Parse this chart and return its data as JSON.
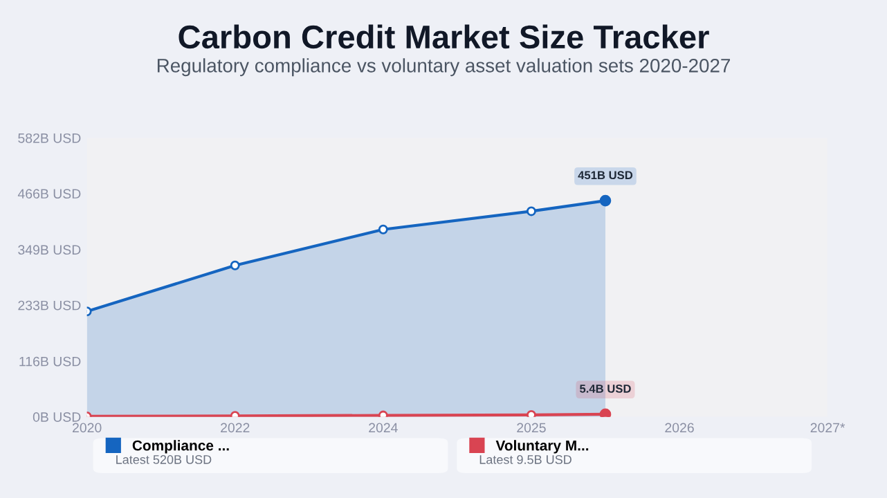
{
  "chart_data": {
    "type": "area",
    "title": "Carbon Credit Market Size Tracker",
    "subtitle": "Regulatory compliance vs voluntary asset valuation sets 2020-2027",
    "categories": [
      "2020",
      null,
      "2022",
      null,
      "2024",
      null,
      "2025",
      null,
      "2026",
      null,
      "2027*"
    ],
    "ylim": [
      0,
      582
    ],
    "yticks": [
      {
        "value": 0,
        "label": "0B USD"
      },
      {
        "value": 116,
        "label": "116B USD"
      },
      {
        "value": 233,
        "label": "233B USD"
      },
      {
        "value": 349,
        "label": "349B USD"
      },
      {
        "value": 466,
        "label": "466B USD"
      },
      {
        "value": 582,
        "label": "582B USD"
      }
    ],
    "series": [
      {
        "name": "Compliance ...",
        "color": "#1565c0",
        "values": [
          220,
          null,
          316,
          null,
          391,
          null,
          429,
          451,
          null,
          null,
          null
        ],
        "value_labels": [
          null,
          null,
          null,
          null,
          null,
          null,
          null,
          "451B USD",
          null,
          null,
          null
        ]
      },
      {
        "name": "Voluntary M...",
        "type": "line",
        "color": "#d94452",
        "values": [
          1,
          null,
          2,
          null,
          3,
          null,
          4,
          5.4,
          null,
          null,
          null
        ],
        "value_labels": [
          null,
          null,
          null,
          null,
          null,
          null,
          null,
          "5.4B USD",
          null,
          null,
          null
        ]
      }
    ],
    "annotations": [
      "Latest 520B USD",
      "Latest 9.5B USD"
    ],
    "marker": "circle",
    "legend": "bottom",
    "grid": false
  }
}
